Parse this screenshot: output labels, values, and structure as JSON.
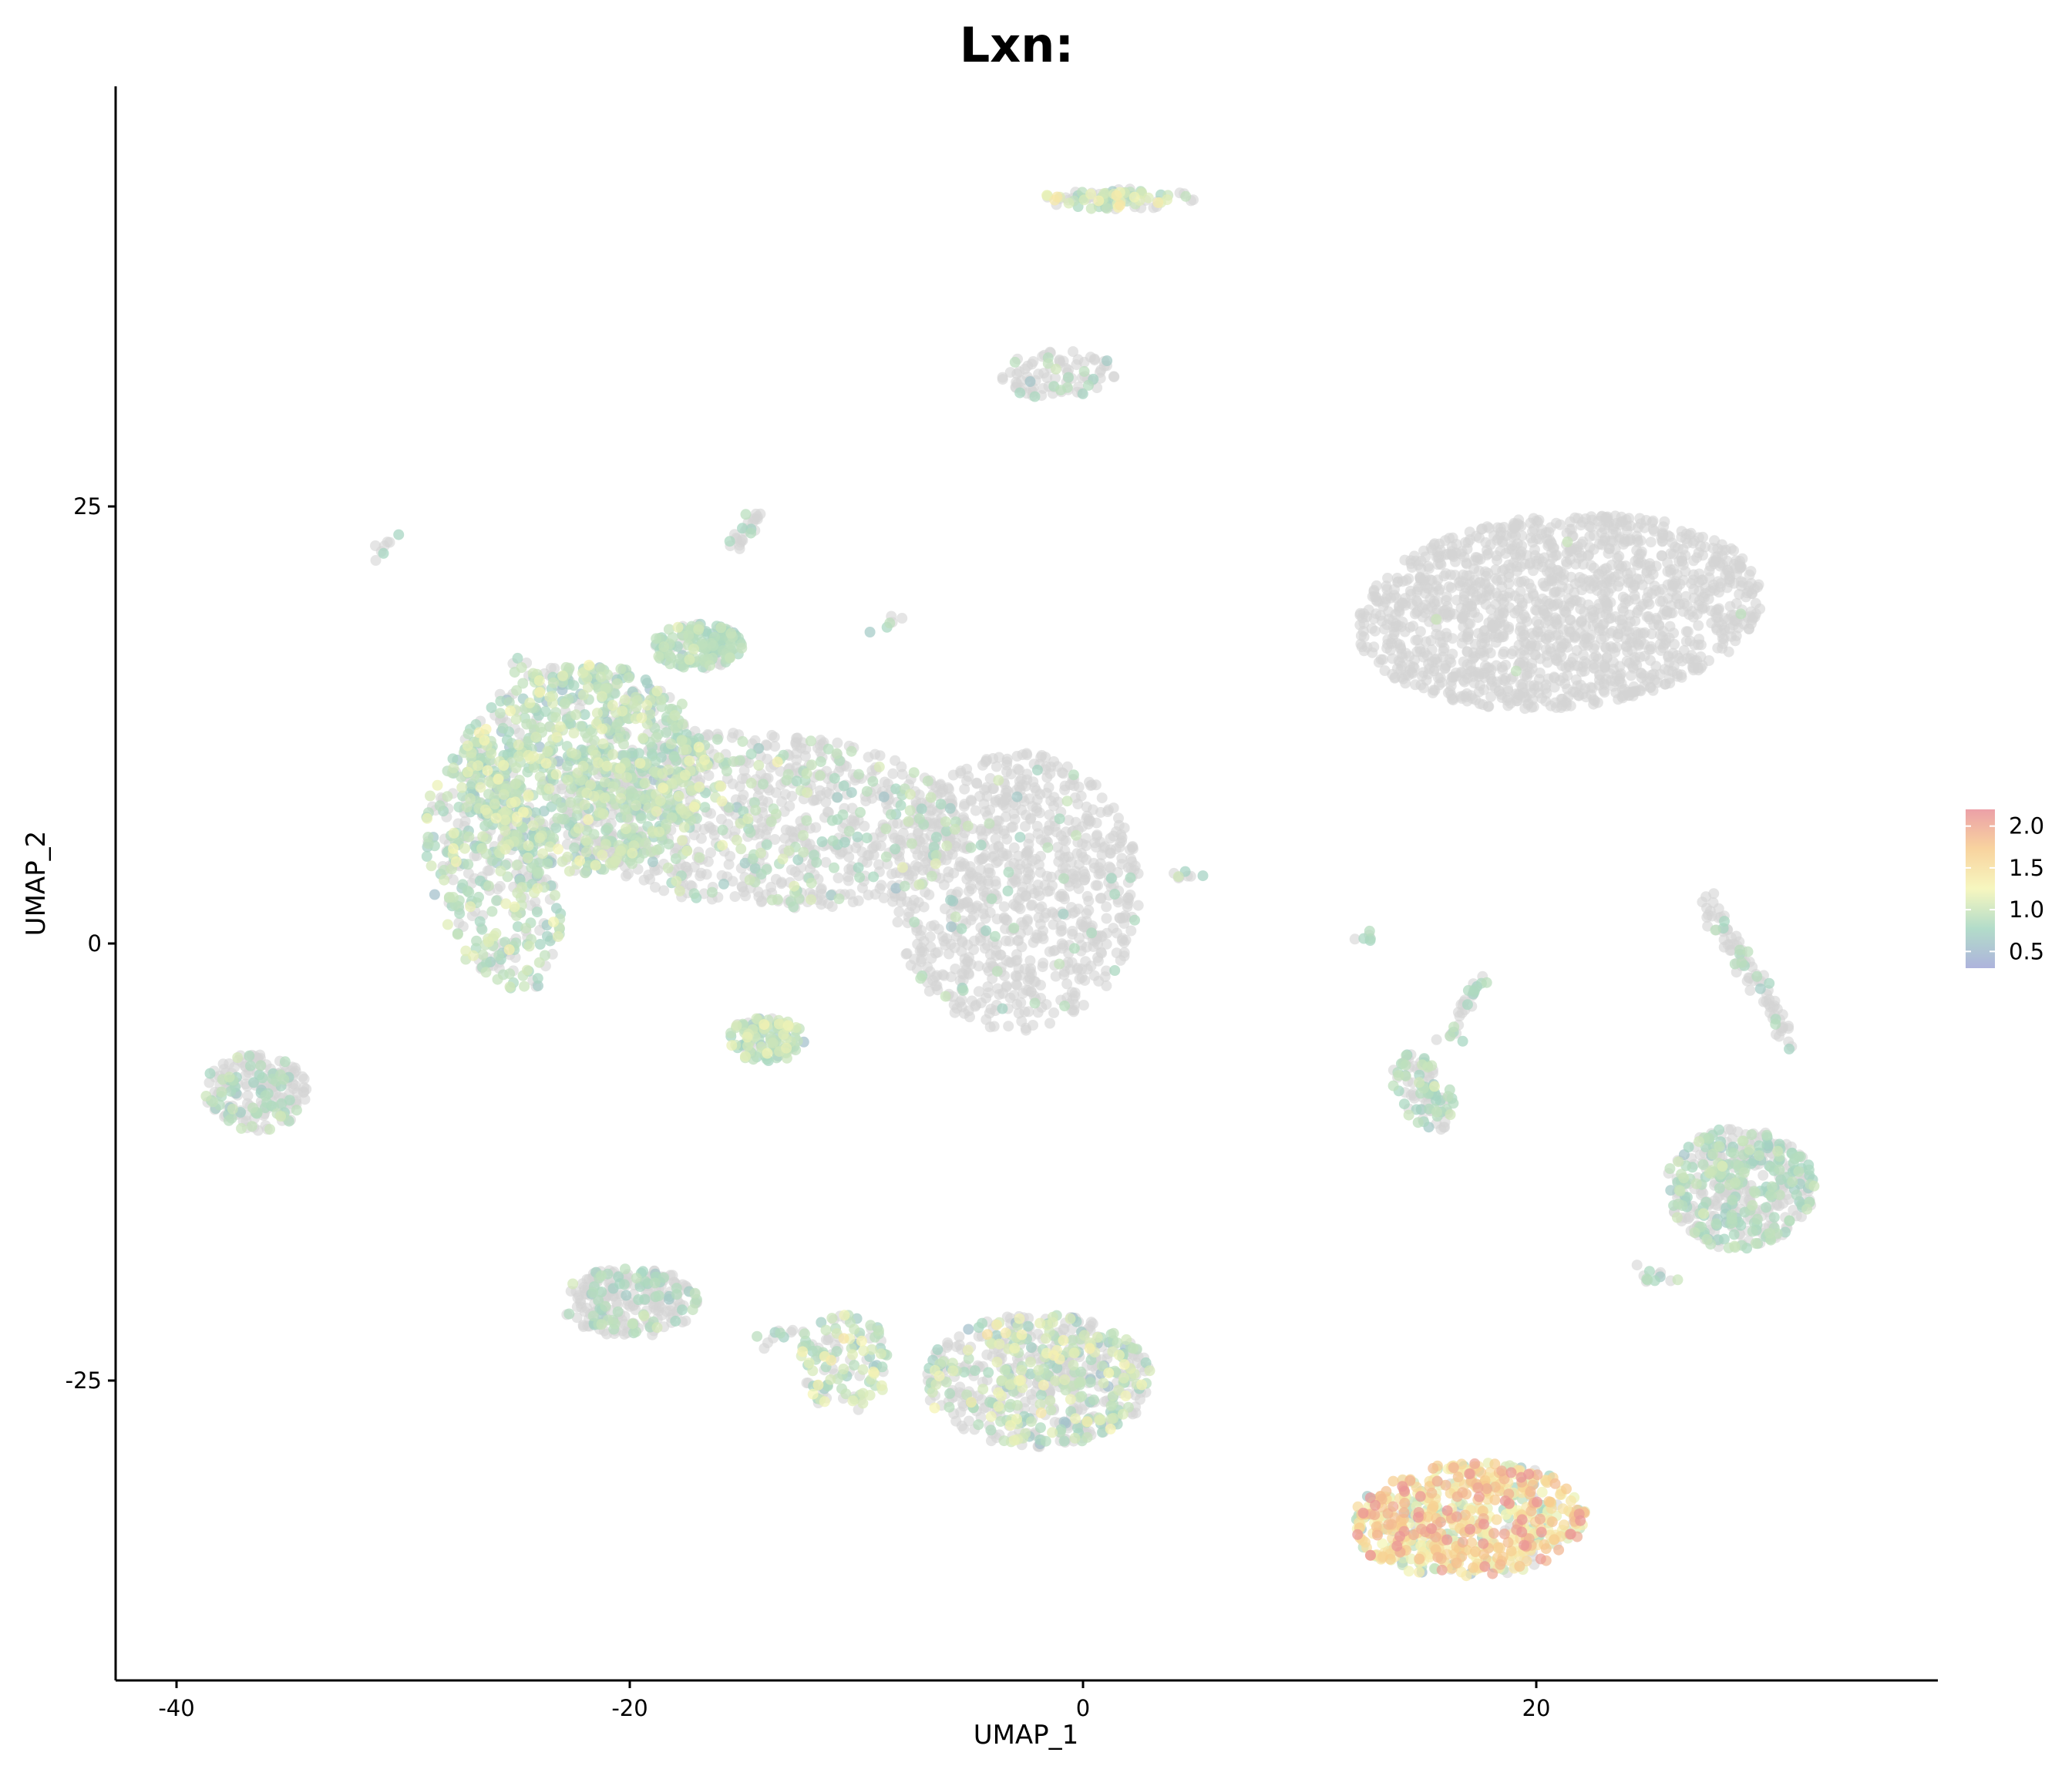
{
  "chart_data": {
    "type": "scatter",
    "title": "Lxn:",
    "xlabel": "UMAP_1",
    "ylabel": "UMAP_2",
    "xlim": [
      -42.5,
      37.8
    ],
    "ylim": [
      -42.5,
      49
    ],
    "x_ticks": [
      -40,
      -20,
      0,
      20
    ],
    "y_ticks": [
      -25,
      0,
      25
    ],
    "x_tick_labels": [
      "-40",
      "-20",
      "0",
      "20"
    ],
    "y_tick_labels": [
      "-25",
      "0",
      "25"
    ],
    "grid": false,
    "legend_position": "right",
    "color_scale": {
      "name": "Spectral (reversed)",
      "min": 0.3,
      "max": 2.2,
      "ticks": [
        0.5,
        1.0,
        1.5,
        2.0
      ],
      "tick_labels": [
        "0.5",
        "1.0",
        "1.5",
        "2.0"
      ],
      "colors": [
        "#9fa6d6",
        "#a5d6c0",
        "#f5f5b4",
        "#f7cc8e",
        "#e89098"
      ],
      "no_expression_color": "#d3d3d3"
    },
    "clusters": [
      {
        "id": "c1",
        "cx": 21,
        "cy": 19,
        "rx": 9,
        "ry": 5.5,
        "rot": 8,
        "n": 1500,
        "pos_rate": 0.002,
        "mean": 1.0,
        "sd": 0.05
      },
      {
        "id": "c2",
        "cx": -3,
        "cy": 3,
        "rx": 5.5,
        "ry": 8,
        "rot": 0,
        "n": 900,
        "pos_rate": 0.05,
        "mean": 0.85,
        "sd": 0.1
      },
      {
        "id": "c3",
        "cx": -14,
        "cy": 7,
        "rx": 9,
        "ry": 5,
        "rot": -5,
        "n": 900,
        "pos_rate": 0.25,
        "mean": 0.9,
        "sd": 0.12
      },
      {
        "id": "c4",
        "cx": -22,
        "cy": 10,
        "rx": 5.5,
        "ry": 6,
        "rot": 0,
        "n": 900,
        "pos_rate": 0.75,
        "mean": 0.9,
        "sd": 0.15
      },
      {
        "id": "c5",
        "cx": -26,
        "cy": 4,
        "rx": 2.8,
        "ry": 7,
        "rot": 10,
        "n": 380,
        "pos_rate": 0.6,
        "mean": 0.9,
        "sd": 0.15
      },
      {
        "id": "c6",
        "cx": -17,
        "cy": 17,
        "rx": 2,
        "ry": 1.3,
        "rot": 0,
        "n": 150,
        "pos_rate": 0.85,
        "mean": 0.85,
        "sd": 0.1
      },
      {
        "id": "c7",
        "cx": -14,
        "cy": -5.5,
        "rx": 1.7,
        "ry": 1.3,
        "rot": 0,
        "n": 110,
        "pos_rate": 0.85,
        "mean": 0.9,
        "sd": 0.15
      },
      {
        "id": "c8",
        "cx": 17,
        "cy": -33,
        "rx": 5.2,
        "ry": 3.3,
        "rot": 5,
        "n": 650,
        "pos_rate": 0.95,
        "mean": 1.45,
        "sd": 0.4
      },
      {
        "id": "c9",
        "cx": 29,
        "cy": -14,
        "rx": 3.3,
        "ry": 3.5,
        "rot": 0,
        "n": 450,
        "pos_rate": 0.45,
        "mean": 0.85,
        "sd": 0.1
      },
      {
        "id": "c10",
        "cx": -2,
        "cy": -25,
        "rx": 5,
        "ry": 3.8,
        "rot": 0,
        "n": 600,
        "pos_rate": 0.45,
        "mean": 0.95,
        "sd": 0.2
      },
      {
        "id": "c11",
        "cx": -10.5,
        "cy": -24,
        "rx": 2,
        "ry": 3,
        "rot": 0,
        "n": 120,
        "pos_rate": 0.6,
        "mean": 0.95,
        "sd": 0.2
      },
      {
        "id": "c12",
        "cx": -20,
        "cy": -20.5,
        "rx": 3,
        "ry": 2,
        "rot": 0,
        "n": 250,
        "pos_rate": 0.3,
        "mean": 0.85,
        "sd": 0.1
      },
      {
        "id": "c13",
        "cx": -36.5,
        "cy": -8.5,
        "rx": 2.3,
        "ry": 2.2,
        "rot": -15,
        "n": 200,
        "pos_rate": 0.3,
        "mean": 0.85,
        "sd": 0.1
      },
      {
        "id": "c14",
        "cx": 15,
        "cy": -8.5,
        "rx": 1.2,
        "ry": 2.3,
        "rot": 20,
        "n": 100,
        "pos_rate": 0.45,
        "mean": 0.85,
        "sd": 0.1
      },
      {
        "id": "c15",
        "cx": -1,
        "cy": 32.5,
        "rx": 2.6,
        "ry": 1.4,
        "rot": 0,
        "n": 90,
        "pos_rate": 0.2,
        "mean": 0.85,
        "sd": 0.1
      },
      {
        "id": "c16",
        "cx": 1.5,
        "cy": 42.6,
        "rx": 3.4,
        "ry": 0.6,
        "rot": 0,
        "n": 90,
        "pos_rate": 0.6,
        "mean": 1.0,
        "sd": 0.2
      }
    ],
    "strands": [
      {
        "id": "s1",
        "x1": 27.5,
        "y1": 2.5,
        "x2": 31.5,
        "y2": -6,
        "n": 90,
        "pos_rate": 0.2,
        "mean": 0.85,
        "sd": 0.1
      },
      {
        "id": "s2",
        "x1": -15.5,
        "y1": 22.5,
        "x2": -14.5,
        "y2": 24.5,
        "n": 25,
        "pos_rate": 0.3,
        "mean": 0.85,
        "sd": 0.1
      },
      {
        "id": "s3",
        "x1": 16,
        "y1": -6,
        "x2": 17.5,
        "y2": -2,
        "n": 30,
        "pos_rate": 0.4,
        "mean": 0.85,
        "sd": 0.1
      },
      {
        "id": "s4",
        "x1": -12,
        "y1": -22.5,
        "x2": -14.5,
        "y2": -22.5,
        "n": 15,
        "pos_rate": 0.4,
        "mean": 0.85,
        "sd": 0.1
      },
      {
        "id": "s5",
        "x1": -31,
        "y1": 22.5,
        "x2": -30.3,
        "y2": 23.2,
        "n": 8,
        "pos_rate": 0.3,
        "mean": 0.85,
        "sd": 0.1
      },
      {
        "id": "s6",
        "x1": 4.3,
        "y1": 3.8,
        "x2": 5.2,
        "y2": 4.0,
        "n": 8,
        "pos_rate": 0.5,
        "mean": 0.85,
        "sd": 0.1
      },
      {
        "id": "s7",
        "x1": 12.3,
        "y1": 0.2,
        "x2": 12.8,
        "y2": 0.6,
        "n": 6,
        "pos_rate": 0.5,
        "mean": 0.85,
        "sd": 0.1
      },
      {
        "id": "s8",
        "x1": 24,
        "y1": -19,
        "x2": 26.5,
        "y2": -19,
        "n": 12,
        "pos_rate": 0.4,
        "mean": 0.85,
        "sd": 0.1
      },
      {
        "id": "s9",
        "x1": -25,
        "y1": 15.8,
        "x2": -24.6,
        "y2": 16.1,
        "n": 5,
        "pos_rate": 0.6,
        "mean": 0.85,
        "sd": 0.1
      },
      {
        "id": "s10",
        "x1": -9,
        "y1": 18,
        "x2": -8.3,
        "y2": 18.3,
        "n": 6,
        "pos_rate": 0.4,
        "mean": 0.85,
        "sd": 0.1
      }
    ]
  }
}
